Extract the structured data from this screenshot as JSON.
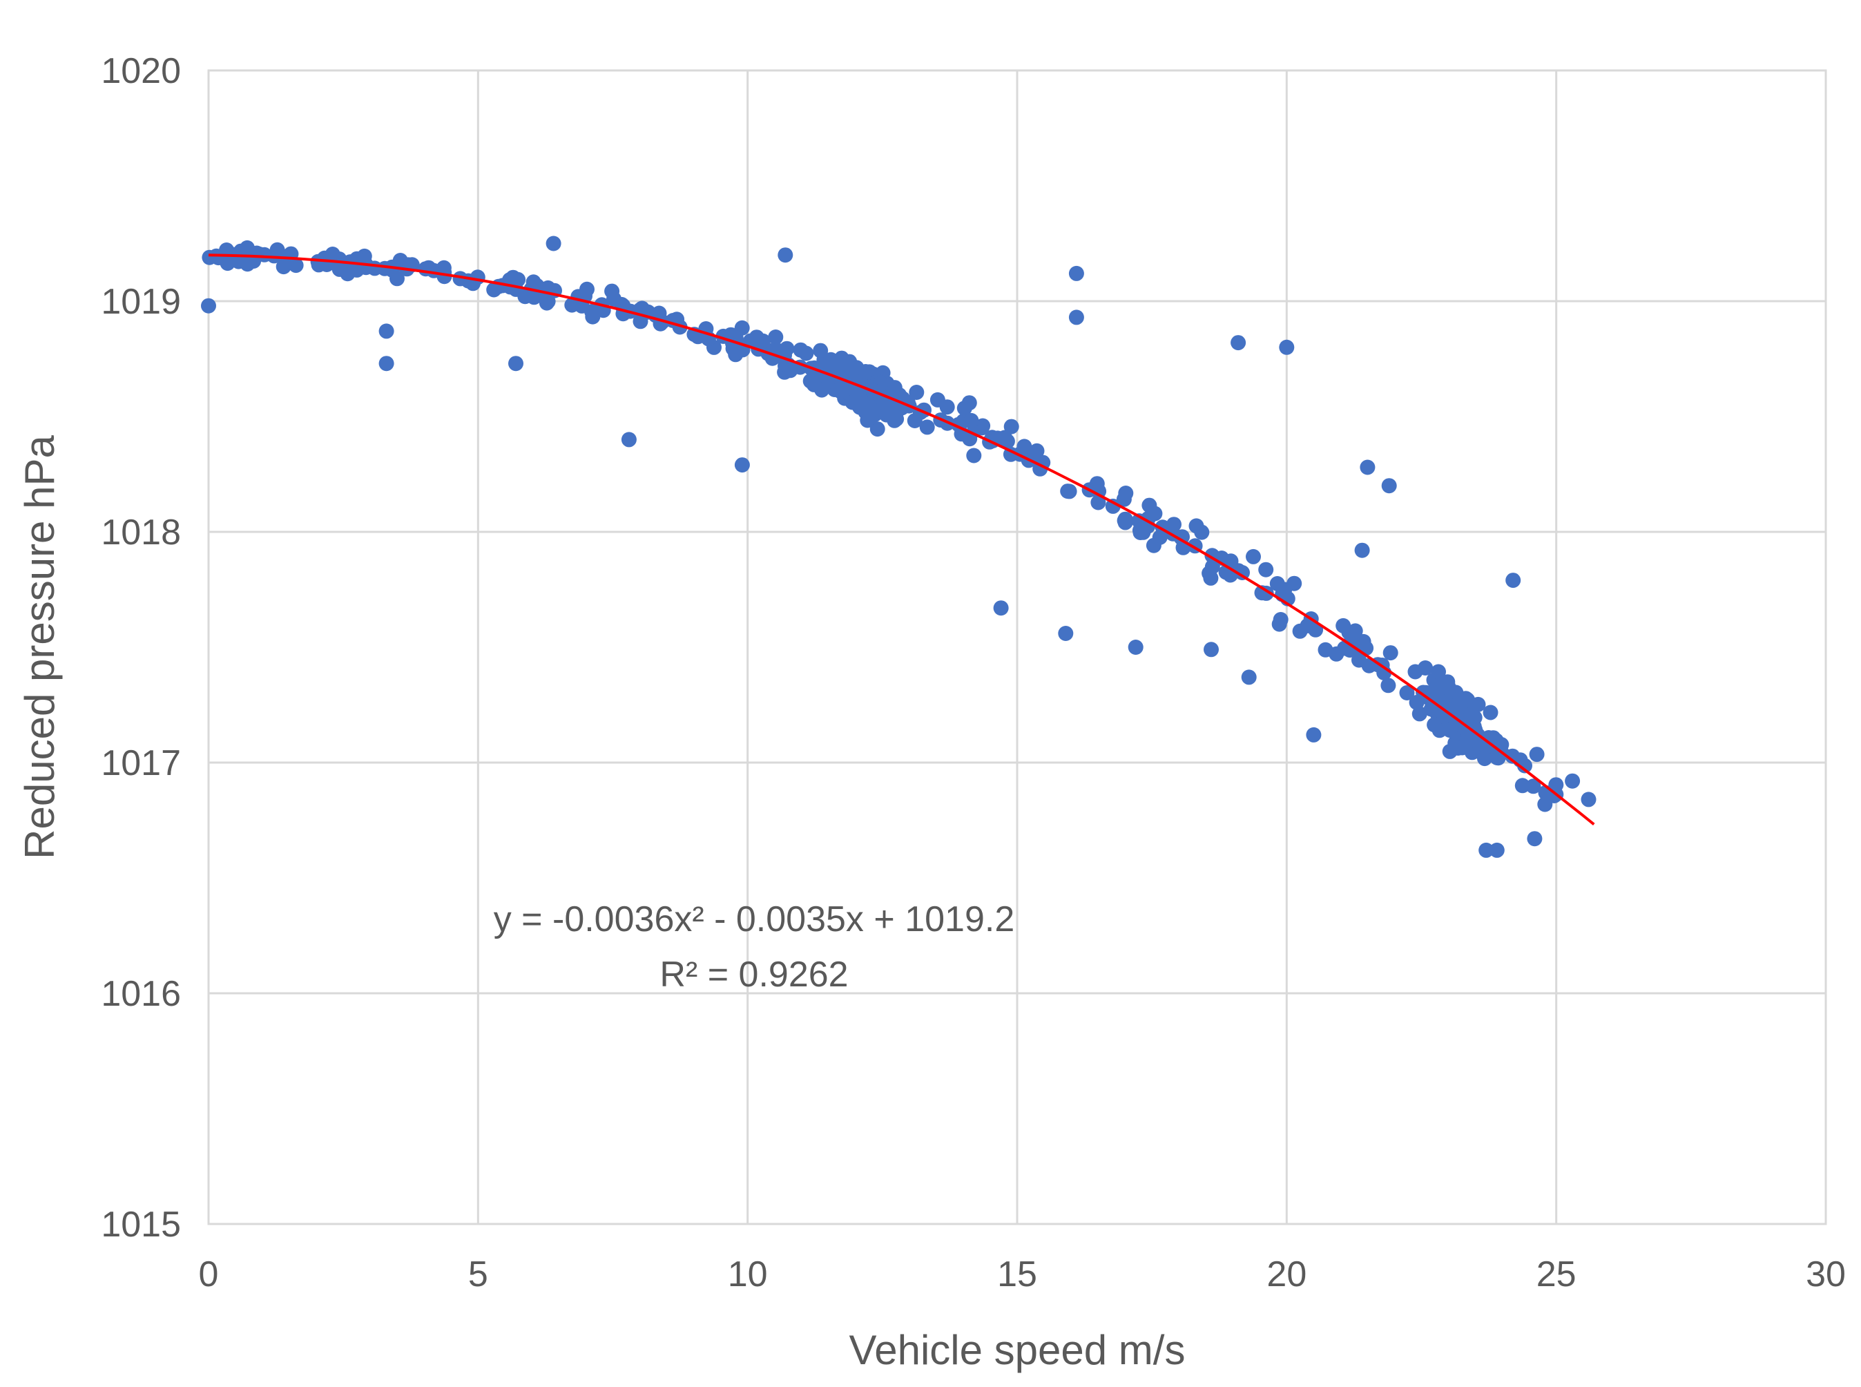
{
  "chart_data": {
    "type": "scatter",
    "title": "",
    "xlabel": "Vehicle speed m/s",
    "ylabel": "Reduced pressure hPa",
    "xlim": [
      0,
      30
    ],
    "ylim": [
      1015,
      1020
    ],
    "x_ticks": [
      "0",
      "5",
      "10",
      "15",
      "20",
      "25",
      "30"
    ],
    "y_ticks": [
      "1015",
      "1016",
      "1017",
      "1018",
      "1019",
      "1020"
    ],
    "grid": true,
    "legend": "none",
    "marker_color": "#4472c4",
    "trendline_color": "#ff0000",
    "trendline": {
      "type": "polynomial",
      "coefficients": [
        -0.0036,
        -0.0035,
        1019.2
      ],
      "x_range": [
        0,
        25.7
      ]
    },
    "annotations": {
      "equation": "y = -0.0036x² - 0.0035x + 1019.2",
      "r_squared": "R² = 0.9262"
    },
    "points_generation": {
      "count": 620,
      "seed": 7,
      "x_range": [
        0,
        25
      ],
      "dense_clusters": [
        [
          12.2,
          1018.62
        ],
        [
          23.2,
          1017.15
        ]
      ],
      "outliers": [
        [
          16.1,
          1019.12
        ],
        [
          16.1,
          1018.93
        ],
        [
          19.1,
          1018.82
        ],
        [
          20.0,
          1018.8
        ],
        [
          14.7,
          1017.67
        ],
        [
          15.9,
          1017.56
        ],
        [
          7.8,
          1018.4
        ],
        [
          9.9,
          1018.29
        ],
        [
          3.3,
          1018.87
        ],
        [
          3.3,
          1018.73
        ],
        [
          5.7,
          1018.73
        ],
        [
          10.7,
          1019.2
        ],
        [
          6.4,
          1019.25
        ],
        [
          21.9,
          1018.2
        ],
        [
          21.5,
          1018.28
        ],
        [
          24.2,
          1017.79
        ],
        [
          20.5,
          1017.12
        ],
        [
          23.7,
          1016.62
        ],
        [
          23.9,
          1016.62
        ],
        [
          24.6,
          1016.67
        ],
        [
          25.6,
          1016.84
        ],
        [
          25.3,
          1016.92
        ],
        [
          17.2,
          1017.5
        ],
        [
          18.6,
          1017.49
        ],
        [
          0.0,
          1018.98
        ],
        [
          19.3,
          1017.37
        ],
        [
          21.4,
          1017.92
        ]
      ]
    }
  }
}
